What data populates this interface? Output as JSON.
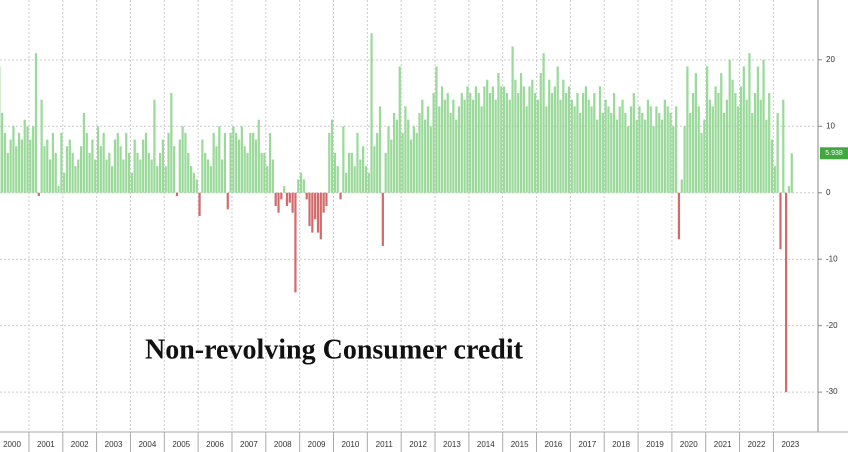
{
  "chart_data": {
    "type": "bar",
    "title": "Non-revolving Consumer credit",
    "categories": [
      "2000",
      null,
      null,
      null,
      null,
      null,
      null,
      null,
      null,
      null,
      null,
      null,
      "2001",
      null,
      null,
      null,
      null,
      null,
      null,
      null,
      null,
      null,
      null,
      null,
      "2002",
      null,
      null,
      null,
      null,
      null,
      null,
      null,
      null,
      null,
      null,
      null,
      "2003",
      null,
      null,
      null,
      null,
      null,
      null,
      null,
      null,
      null,
      null,
      null,
      "2004",
      null,
      null,
      null,
      null,
      null,
      null,
      null,
      null,
      null,
      null,
      null,
      "2005",
      null,
      null,
      null,
      null,
      null,
      null,
      null,
      null,
      null,
      null,
      null,
      "2006",
      null,
      null,
      null,
      null,
      null,
      null,
      null,
      null,
      null,
      null,
      null,
      "2007",
      null,
      null,
      null,
      null,
      null,
      null,
      null,
      null,
      null,
      null,
      null,
      "2008",
      null,
      null,
      null,
      null,
      null,
      null,
      null,
      null,
      null,
      null,
      null,
      "2009",
      null,
      null,
      null,
      null,
      null,
      null,
      null,
      null,
      null,
      null,
      null,
      "2010",
      null,
      null,
      null,
      null,
      null,
      null,
      null,
      null,
      null,
      null,
      null,
      "2011",
      null,
      null,
      null,
      null,
      null,
      null,
      null,
      null,
      null,
      null,
      null,
      "2012",
      null,
      null,
      null,
      null,
      null,
      null,
      null,
      null,
      null,
      null,
      null,
      "2013",
      null,
      null,
      null,
      null,
      null,
      null,
      null,
      null,
      null,
      null,
      null,
      "2014",
      null,
      null,
      null,
      null,
      null,
      null,
      null,
      null,
      null,
      null,
      null,
      "2015",
      null,
      null,
      null,
      null,
      null,
      null,
      null,
      null,
      null,
      null,
      null,
      "2016",
      null,
      null,
      null,
      null,
      null,
      null,
      null,
      null,
      null,
      null,
      null,
      "2017",
      null,
      null,
      null,
      null,
      null,
      null,
      null,
      null,
      null,
      null,
      null,
      "2018",
      null,
      null,
      null,
      null,
      null,
      null,
      null,
      null,
      null,
      null,
      null,
      "2019",
      null,
      null,
      null,
      null,
      null,
      null,
      null,
      null,
      null,
      null,
      null,
      "2020",
      null,
      null,
      null,
      null,
      null,
      null,
      null,
      null,
      null,
      null,
      null,
      "2021",
      null,
      null,
      null,
      null,
      null,
      null,
      null,
      null,
      null,
      null,
      null,
      "2022",
      null,
      null,
      null,
      null,
      null,
      null,
      null,
      null,
      null,
      null,
      null,
      "2023",
      null,
      null,
      null,
      null,
      null,
      null
    ],
    "values": [
      7,
      19,
      12,
      9,
      6,
      8,
      10,
      7,
      9,
      8,
      11,
      10,
      8,
      10,
      21,
      -0.5,
      14,
      7,
      8,
      5,
      9,
      6,
      1,
      9,
      3,
      7,
      8,
      6,
      4,
      5,
      7,
      12,
      9,
      6,
      8,
      5,
      10,
      7,
      9,
      5,
      6,
      4,
      8,
      9,
      7,
      5,
      9,
      6,
      3,
      8,
      6,
      5,
      8,
      9,
      6,
      5,
      14,
      4,
      6,
      8,
      4,
      9,
      15,
      7,
      -0.5,
      8,
      10,
      9,
      6,
      4,
      3,
      2,
      -3.5,
      8,
      6,
      5,
      4,
      9,
      7,
      10,
      5,
      9,
      -2.5,
      9,
      10,
      9,
      8,
      10,
      7,
      6,
      9,
      9,
      8,
      11,
      6,
      6,
      4,
      9,
      5,
      -2,
      -3,
      -1,
      1,
      -2,
      -1.5,
      -3,
      -15,
      2,
      3,
      2,
      -1,
      -5,
      -6,
      -4,
      -6,
      -7,
      -3,
      -2,
      9,
      11,
      6,
      4,
      -1,
      10,
      3,
      6,
      6,
      4,
      9,
      5,
      7,
      4,
      3,
      24,
      7,
      9,
      13,
      -8,
      6,
      10,
      8,
      12,
      11,
      19,
      9,
      13,
      11,
      8,
      10,
      9,
      12,
      14,
      11,
      13,
      10,
      15,
      19,
      13,
      16,
      14,
      15,
      12,
      14,
      11,
      13,
      15,
      14,
      16,
      15,
      14,
      16,
      15,
      13,
      16,
      17,
      15,
      16,
      14,
      18,
      16,
      16,
      15,
      14,
      22,
      17,
      15,
      18,
      16,
      13,
      16,
      17,
      15,
      14,
      18,
      21,
      13,
      17,
      15,
      16,
      19,
      14,
      17,
      15,
      16,
      14,
      13,
      15,
      12,
      15,
      16,
      14,
      13,
      15,
      11,
      16,
      12,
      14,
      13,
      12,
      15,
      11,
      13,
      14,
      12,
      10,
      13,
      15,
      11,
      13,
      12,
      11,
      14,
      13,
      10,
      13,
      12,
      11,
      14,
      13,
      12,
      10,
      13,
      -7,
      2,
      10,
      19,
      12,
      15,
      18,
      13,
      9,
      11,
      19,
      14,
      13,
      16,
      15,
      18,
      12,
      14,
      20,
      17,
      15,
      13,
      16,
      19,
      14,
      21,
      12,
      15,
      19,
      14,
      20,
      11,
      15,
      8,
      4,
      12,
      -8.5,
      14,
      -30,
      1,
      5.938
    ],
    "color": "#9ad99a",
    "negative_color": "#d46a6a",
    "last_value_color": "#3fa83f",
    "ylim": [
      -36,
      29
    ],
    "yticks": [
      -30,
      -20,
      -10,
      0,
      10,
      20
    ],
    "grid": true
  }
}
